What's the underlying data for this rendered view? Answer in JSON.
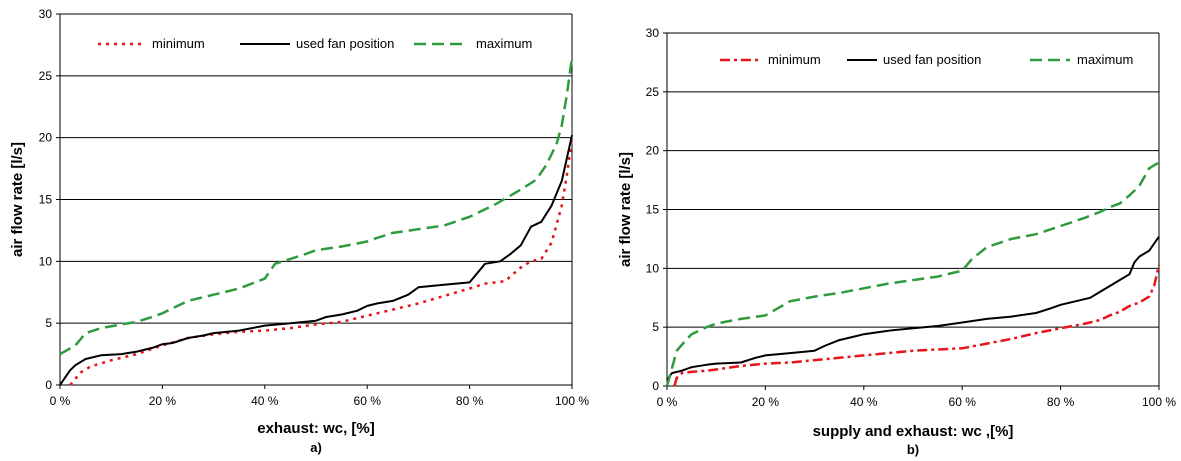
{
  "chart_data": [
    {
      "type": "line",
      "panel_label": "a)",
      "xlabel": "exhaust: wc, [%]",
      "ylabel": "air flow rate [l/s]",
      "xlim": [
        0,
        100
      ],
      "ylim": [
        0,
        30
      ],
      "x_ticks": [
        "0 %",
        "20 %",
        "40 %",
        "60 %",
        "80 %",
        "100 %"
      ],
      "y_ticks": [
        "0",
        "5",
        "10",
        "15",
        "20",
        "25",
        "30"
      ],
      "grid": "horizontal",
      "legend_position": "top",
      "series": [
        {
          "name": "minimum",
          "color": "#e8141b",
          "style": "dotted",
          "x": [
            2,
            4,
            6,
            10,
            15,
            20,
            25,
            30,
            35,
            40,
            45,
            50,
            55,
            60,
            65,
            70,
            75,
            80,
            83,
            85,
            87,
            88,
            90,
            92,
            94,
            96,
            98,
            99,
            100
          ],
          "y": [
            0,
            1.0,
            1.5,
            2.0,
            2.5,
            3.2,
            3.8,
            4.1,
            4.3,
            4.4,
            4.6,
            4.9,
            5.1,
            5.6,
            6.1,
            6.6,
            7.2,
            7.8,
            8.2,
            8.3,
            8.4,
            8.8,
            9.5,
            10.0,
            10.2,
            11.5,
            14.5,
            17.0,
            20.0
          ]
        },
        {
          "name": "used fan position",
          "color": "#000000",
          "style": "solid",
          "x": [
            0,
            1,
            2,
            3,
            5,
            8,
            12,
            15,
            18,
            20,
            22,
            25,
            28,
            30,
            35,
            40,
            45,
            50,
            52,
            55,
            58,
            60,
            62,
            65,
            68,
            70,
            75,
            80,
            83,
            86,
            88,
            90,
            92,
            94,
            96,
            98,
            100
          ],
          "y": [
            0,
            0.6,
            1.2,
            1.6,
            2.1,
            2.4,
            2.5,
            2.7,
            3.0,
            3.3,
            3.4,
            3.8,
            4.0,
            4.2,
            4.4,
            4.8,
            5.0,
            5.2,
            5.5,
            5.7,
            6.0,
            6.4,
            6.6,
            6.8,
            7.3,
            7.9,
            8.1,
            8.3,
            9.8,
            10.0,
            10.6,
            11.3,
            12.8,
            13.2,
            14.5,
            16.5,
            20.2
          ]
        },
        {
          "name": "maximum",
          "color": "#2e9b3e",
          "style": "dashed",
          "x": [
            0,
            3,
            5,
            8,
            12,
            15,
            18,
            20,
            22,
            25,
            30,
            35,
            40,
            42,
            45,
            48,
            50,
            55,
            60,
            62,
            65,
            70,
            75,
            80,
            85,
            90,
            93,
            95,
            97,
            98,
            99,
            100
          ],
          "y": [
            2.5,
            3.2,
            4.2,
            4.6,
            4.9,
            5.1,
            5.5,
            5.8,
            6.2,
            6.8,
            7.3,
            7.8,
            8.6,
            9.8,
            10.2,
            10.6,
            10.9,
            11.2,
            11.6,
            11.9,
            12.3,
            12.6,
            12.9,
            13.6,
            14.6,
            15.8,
            16.6,
            17.8,
            19.5,
            21.0,
            23.5,
            26.5
          ]
        }
      ]
    },
    {
      "type": "line",
      "panel_label": "b)",
      "xlabel": "supply and exhaust: wc ,[%]",
      "ylabel": "air flow rate [l/s]",
      "xlim": [
        0,
        100
      ],
      "ylim": [
        0,
        30
      ],
      "x_ticks": [
        "0 %",
        "20 %",
        "40 %",
        "60 %",
        "80 %",
        "100 %"
      ],
      "y_ticks": [
        "0",
        "5",
        "10",
        "15",
        "20",
        "25",
        "30"
      ],
      "grid": "horizontal",
      "legend_position": "top",
      "series": [
        {
          "name": "minimum",
          "color": "#e8141b",
          "style": "dashdot",
          "x": [
            1.5,
            2,
            3,
            5,
            8,
            10,
            15,
            20,
            25,
            30,
            35,
            40,
            45,
            50,
            55,
            60,
            65,
            70,
            75,
            80,
            85,
            88,
            90,
            92,
            94,
            96,
            98,
            99,
            100
          ],
          "y": [
            0,
            0.7,
            1.1,
            1.2,
            1.3,
            1.4,
            1.7,
            1.9,
            2.0,
            2.2,
            2.4,
            2.6,
            2.8,
            3.0,
            3.1,
            3.2,
            3.6,
            4.0,
            4.5,
            4.9,
            5.3,
            5.6,
            6.0,
            6.3,
            6.8,
            7.1,
            7.6,
            8.5,
            10.3
          ]
        },
        {
          "name": "used fan position",
          "color": "#000000",
          "style": "solid",
          "x": [
            0,
            1,
            3,
            5,
            8,
            10,
            15,
            18,
            20,
            25,
            30,
            32,
            35,
            38,
            40,
            45,
            50,
            55,
            60,
            65,
            70,
            75,
            78,
            80,
            83,
            86,
            88,
            90,
            92,
            94,
            95,
            96,
            98,
            100
          ],
          "y": [
            0.5,
            1.1,
            1.3,
            1.6,
            1.8,
            1.9,
            2.0,
            2.4,
            2.6,
            2.8,
            3.0,
            3.4,
            3.9,
            4.2,
            4.4,
            4.7,
            4.9,
            5.1,
            5.4,
            5.7,
            5.9,
            6.2,
            6.6,
            6.9,
            7.2,
            7.5,
            8.0,
            8.5,
            9.0,
            9.5,
            10.5,
            11.0,
            11.5,
            12.7
          ]
        },
        {
          "name": "maximum",
          "color": "#2e9b3e",
          "style": "dashed",
          "x": [
            0,
            1,
            2,
            3,
            5,
            8,
            10,
            15,
            20,
            25,
            30,
            35,
            40,
            45,
            50,
            55,
            58,
            60,
            62,
            65,
            70,
            75,
            80,
            85,
            88,
            90,
            92,
            94,
            96,
            98,
            100
          ],
          "y": [
            0,
            1.5,
            3.0,
            3.5,
            4.4,
            5.0,
            5.3,
            5.7,
            6.0,
            7.2,
            7.6,
            7.9,
            8.3,
            8.7,
            9.0,
            9.3,
            9.6,
            9.8,
            10.8,
            11.8,
            12.5,
            12.9,
            13.6,
            14.3,
            14.8,
            15.2,
            15.5,
            16.2,
            17.0,
            18.5,
            19.0
          ]
        }
      ]
    }
  ]
}
